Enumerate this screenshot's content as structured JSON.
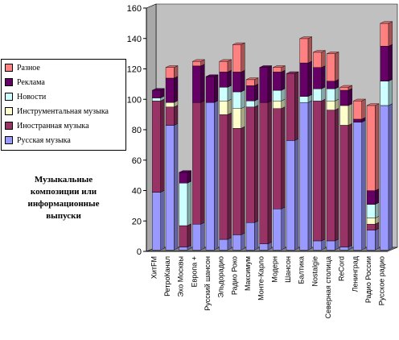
{
  "chart_data": {
    "type": "bar",
    "stacked": true,
    "three_d": true,
    "title": "",
    "xlabel": "",
    "ylabel": "",
    "ylim": [
      0,
      160
    ],
    "yticks": [
      0,
      20,
      40,
      60,
      80,
      100,
      120,
      140,
      160
    ],
    "grid": false,
    "legend_position": "left",
    "categories": [
      "ХитFM",
      "РетроКанал",
      "Эхо Москвы",
      "Европа +",
      "Русский шансон",
      "Эльдорадио",
      "Радио Роко",
      "Максимум",
      "Монте-Карло",
      "Модерн",
      "Шансон",
      "Балтика",
      "Nostalgie",
      "Северная столица",
      "ReCord",
      "Ленинград",
      "Радио России",
      "Русское радио"
    ],
    "series": [
      {
        "name": "Русская музыка",
        "color": "#9999FF",
        "values": [
          38,
          82,
          2,
          17,
          97,
          7,
          10,
          18,
          4,
          27,
          72,
          97,
          6,
          6,
          2,
          84,
          13,
          95
        ]
      },
      {
        "name": "Иностранная музыка",
        "color": "#993366",
        "values": [
          60,
          12,
          14,
          80,
          0,
          82,
          70,
          76,
          93,
          66,
          44,
          0,
          92,
          86,
          80,
          0,
          4,
          0
        ]
      },
      {
        "name": "Инструментальная музыка",
        "color": "#FFFFCC",
        "values": [
          0,
          3,
          0,
          0,
          0,
          9,
          13,
          0,
          0,
          5,
          0,
          0,
          0,
          6,
          13,
          0,
          4,
          0
        ]
      },
      {
        "name": "Новости",
        "color": "#CCFFFF",
        "values": [
          2,
          0,
          28,
          0,
          0,
          9,
          11,
          4,
          0,
          7,
          0,
          4,
          8,
          8,
          0,
          0,
          9,
          16
        ]
      },
      {
        "name": "Реклама",
        "color": "#660066",
        "values": [
          5,
          16,
          7,
          24,
          17,
          10,
          13,
          10,
          23,
          12,
          0,
          22,
          14,
          5,
          10,
          2,
          9,
          23
        ]
      },
      {
        "name": "Разное",
        "color": "#FF8080",
        "values": [
          0,
          7,
          0,
          3,
          0,
          7,
          18,
          4,
          0,
          3,
          0,
          16,
          10,
          18,
          2,
          12,
          56,
          15
        ]
      }
    ]
  },
  "legend": {
    "items": [
      {
        "label": "Разное",
        "color": "#FF8080"
      },
      {
        "label": "Реклама",
        "color": "#660066"
      },
      {
        "label": "Новости",
        "color": "#CCFFFF"
      },
      {
        "label": "Инструментальная музыка",
        "color": "#FFFFCC"
      },
      {
        "label": "Иностранная музыка",
        "color": "#993366"
      },
      {
        "label": "Русская музыка",
        "color": "#9999FF"
      }
    ]
  },
  "side_note": "Музыкальные композиции или информационные выпуски",
  "colors": {
    "wall": "#C0C0C0",
    "floor": "#808080",
    "axis": "#000000"
  }
}
